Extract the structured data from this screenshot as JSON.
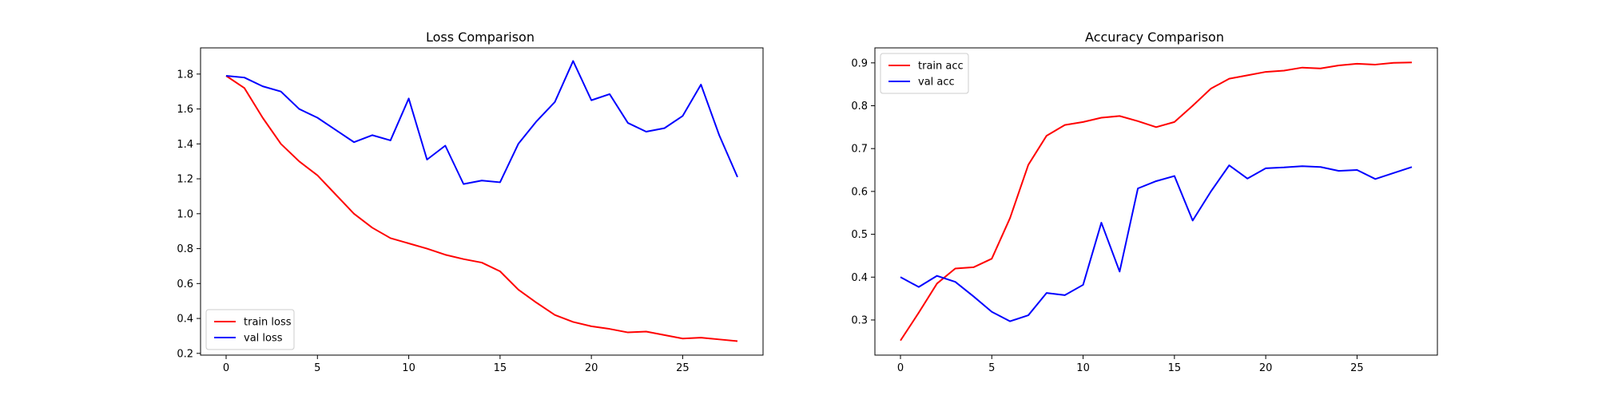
{
  "chart_data": [
    {
      "type": "line",
      "title": "Loss Comparison",
      "xlabel": "",
      "ylabel": "",
      "xlim": [
        -1.4,
        29.4
      ],
      "ylim": [
        0.19,
        1.95
      ],
      "xticks": [
        0,
        5,
        10,
        15,
        20,
        25
      ],
      "yticks": [
        0.2,
        0.4,
        0.6,
        0.8,
        1.0,
        1.2,
        1.4,
        1.6,
        1.8
      ],
      "grid": false,
      "legend_position": "lower-left",
      "x": [
        0,
        1,
        2,
        3,
        4,
        5,
        6,
        7,
        8,
        9,
        10,
        11,
        12,
        13,
        14,
        15,
        16,
        17,
        18,
        19,
        20,
        21,
        22,
        23,
        24,
        25,
        26,
        27,
        28
      ],
      "series": [
        {
          "name": "train loss",
          "color": "#ff0000",
          "values": [
            1.79,
            1.72,
            1.55,
            1.4,
            1.3,
            1.22,
            1.11,
            1.0,
            0.92,
            0.86,
            0.83,
            0.8,
            0.765,
            0.74,
            0.72,
            0.67,
            0.565,
            0.49,
            0.42,
            0.38,
            0.355,
            0.34,
            0.32,
            0.325,
            0.305,
            0.285,
            0.29,
            0.28,
            0.27
          ]
        },
        {
          "name": "val loss",
          "color": "#0000ff",
          "values": [
            1.79,
            1.78,
            1.73,
            1.7,
            1.6,
            1.55,
            1.48,
            1.41,
            1.45,
            1.42,
            1.66,
            1.31,
            1.39,
            1.17,
            1.19,
            1.18,
            1.4,
            1.53,
            1.64,
            1.875,
            1.65,
            1.685,
            1.52,
            1.47,
            1.49,
            1.56,
            1.74,
            1.45,
            1.21
          ]
        }
      ]
    },
    {
      "type": "line",
      "title": "Accuracy Comparison",
      "xlabel": "",
      "ylabel": "",
      "xlim": [
        -1.4,
        29.4
      ],
      "ylim": [
        0.218,
        0.935
      ],
      "xticks": [
        0,
        5,
        10,
        15,
        20,
        25
      ],
      "yticks": [
        0.3,
        0.4,
        0.5,
        0.6,
        0.7,
        0.8,
        0.9
      ],
      "grid": false,
      "legend_position": "upper-left",
      "x": [
        0,
        1,
        2,
        3,
        4,
        5,
        6,
        7,
        8,
        9,
        10,
        11,
        12,
        13,
        14,
        15,
        16,
        17,
        18,
        19,
        20,
        21,
        22,
        23,
        24,
        25,
        26,
        27,
        28
      ],
      "series": [
        {
          "name": "train acc",
          "color": "#ff0000",
          "values": [
            0.252,
            0.317,
            0.385,
            0.42,
            0.423,
            0.443,
            0.538,
            0.662,
            0.73,
            0.755,
            0.762,
            0.772,
            0.776,
            0.764,
            0.75,
            0.762,
            0.8,
            0.84,
            0.863,
            0.871,
            0.879,
            0.882,
            0.889,
            0.887,
            0.894,
            0.898,
            0.896,
            0.9,
            0.901
          ]
        },
        {
          "name": "val acc",
          "color": "#0000ff",
          "values": [
            0.4,
            0.377,
            0.403,
            0.389,
            0.355,
            0.319,
            0.297,
            0.311,
            0.363,
            0.358,
            0.382,
            0.527,
            0.413,
            0.607,
            0.624,
            0.636,
            0.532,
            0.6,
            0.661,
            0.63,
            0.654,
            0.656,
            0.659,
            0.657,
            0.648,
            0.65,
            0.629,
            0.643,
            0.657
          ]
        }
      ]
    }
  ]
}
